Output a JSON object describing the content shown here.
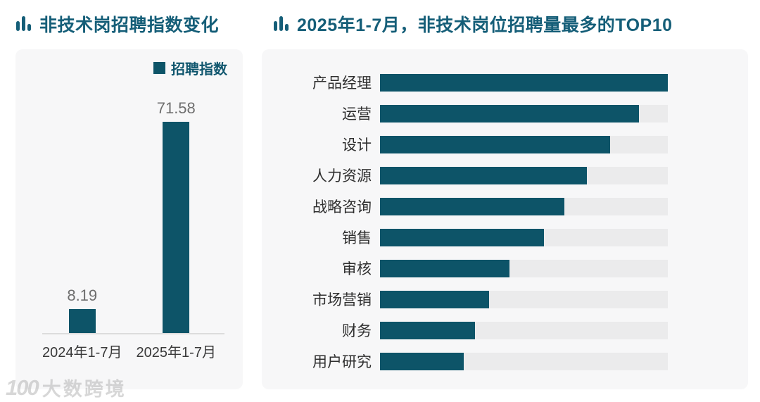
{
  "left_panel": {
    "title": "非技术岗招聘指数变化",
    "legend_label": "招聘指数"
  },
  "right_panel": {
    "title": "2025年1-7月，非技术岗位招聘量最多的TOP10"
  },
  "watermark": {
    "logo": "100",
    "text": "大数跨境"
  },
  "colors": {
    "bar": "#0d5468",
    "title": "#155e78",
    "legend_text": "#10566e",
    "card_bg": "#f7f7f8",
    "track_bg": "#ebebec",
    "value_label": "#6e6e6e",
    "axis_line": "#dcdcdc",
    "category_text": "#2f2f2f"
  },
  "chart_data": [
    {
      "type": "bar",
      "title": "非技术岗招聘指数变化",
      "legend": [
        "招聘指数"
      ],
      "legend_position": "top-right",
      "categories": [
        "2024年1-7月",
        "2025年1-7月"
      ],
      "values": [
        8.19,
        71.58
      ],
      "value_labels": [
        "8.19",
        "71.58"
      ],
      "ylim": [
        0,
        71.58
      ],
      "grid": false,
      "bar_color": "#0d5468"
    },
    {
      "type": "bar",
      "orientation": "horizontal",
      "title": "2025年1-7月，非技术岗位招聘量最多的TOP10",
      "categories": [
        "产品经理",
        "运营",
        "设计",
        "人力资源",
        "战略咨询",
        "销售",
        "审核",
        "市场营销",
        "财务",
        "用户研究"
      ],
      "values_percent_of_max": [
        100,
        90,
        80,
        72,
        64,
        57,
        45,
        38,
        33,
        29
      ],
      "value_labels_shown": false,
      "grid": false,
      "bar_color": "#0d5468",
      "track_color": "#ebebec"
    }
  ]
}
